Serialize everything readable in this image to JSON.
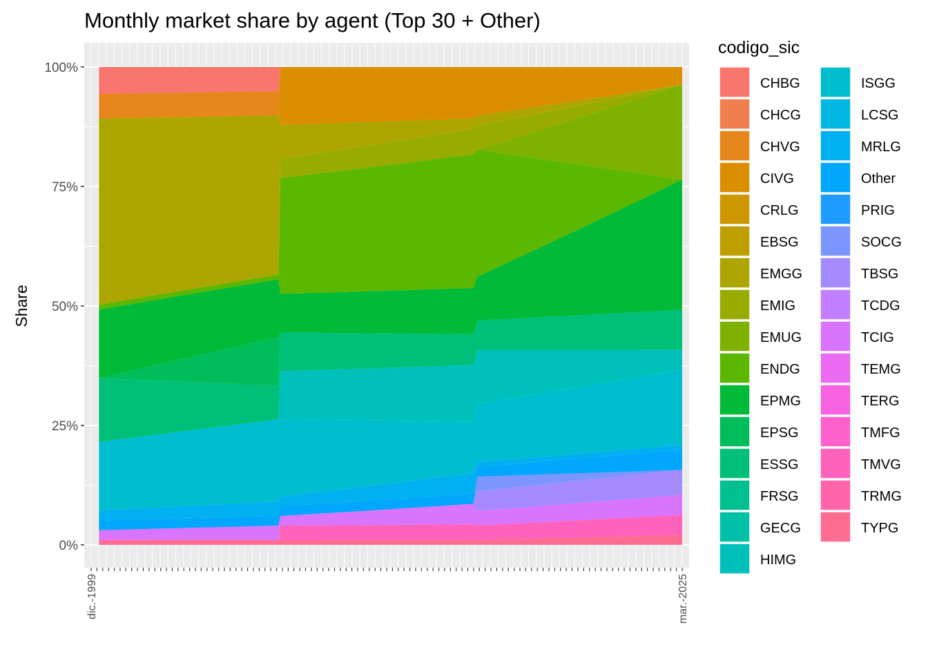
{
  "chart_data": {
    "type": "area",
    "title": "Monthly market share by agent (Top 30 + Other)",
    "xlabel": "",
    "ylabel": "Share",
    "ylim": [
      0,
      1
    ],
    "y_ticks": [
      0,
      0.25,
      0.5,
      0.75,
      1.0
    ],
    "y_tick_labels": [
      "0%",
      "25%",
      "50%",
      "75%",
      "100%"
    ],
    "x_start": "dic.-1999",
    "x_end": "mar.-2025",
    "x_tick_labels_visible": [
      "dic.-1999",
      "mar.-2025"
    ],
    "stacked": true,
    "normalized": true,
    "legend_title": "codigo_sic",
    "legend_position": "right",
    "grid": true,
    "x_anchor_dates": [
      "2000-04",
      "2007-12",
      "2008-01",
      "2016-04",
      "2016-06",
      "2025-03"
    ],
    "series": [
      {
        "name": "CHBG",
        "color": "#F8766D",
        "values": [
          0.055,
          0.05,
          0.0,
          0.0,
          0.0,
          0.0
        ]
      },
      {
        "name": "CHCG",
        "color": "#F17E4F",
        "values": [
          0.0,
          0.0,
          0.0,
          0.0,
          0.0,
          0.0
        ]
      },
      {
        "name": "CHVG",
        "color": "#E7861B",
        "values": [
          0.05,
          0.05,
          0.0,
          0.0,
          0.0,
          0.0
        ]
      },
      {
        "name": "CIVG",
        "color": "#DB8E00",
        "values": [
          0.0,
          0.0,
          0.12,
          0.1,
          0.1,
          0.035
        ]
      },
      {
        "name": "CRLG",
        "color": "#CE9700",
        "values": [
          0.0,
          0.0,
          0.0,
          0.0,
          0.0,
          0.0
        ]
      },
      {
        "name": "EBSG",
        "color": "#BF9E00",
        "values": [
          0.0,
          0.0,
          0.0,
          0.0,
          0.0,
          0.0
        ]
      },
      {
        "name": "EMGG",
        "color": "#ADA600",
        "values": [
          0.38,
          0.33,
          0.07,
          0.02,
          0.02,
          0.0
        ]
      },
      {
        "name": "EMIG",
        "color": "#98AC00",
        "values": [
          0.0,
          0.0,
          0.04,
          0.05,
          0.05,
          0.0
        ]
      },
      {
        "name": "EMUG",
        "color": "#7FB200",
        "values": [
          0.0,
          0.0,
          0.0,
          0.0,
          0.0,
          0.19
        ]
      },
      {
        "name": "ENDG",
        "color": "#5BB700",
        "values": [
          0.01,
          0.01,
          0.24,
          0.26,
          0.26,
          0.0
        ]
      },
      {
        "name": "EPMG",
        "color": "#00BA38",
        "values": [
          0.14,
          0.12,
          0.08,
          0.09,
          0.09,
          0.26
        ]
      },
      {
        "name": "EPSG",
        "color": "#00BD5C",
        "values": [
          0.0,
          0.1,
          0.0,
          0.0,
          0.0,
          0.0
        ]
      },
      {
        "name": "ESSG",
        "color": "#00BF78",
        "values": [
          0.13,
          0.07,
          0.08,
          0.06,
          0.06,
          0.08
        ]
      },
      {
        "name": "FRSG",
        "color": "#00C090",
        "values": [
          0.0,
          0.0,
          0.0,
          0.0,
          0.0,
          0.0
        ]
      },
      {
        "name": "GECG",
        "color": "#00C1A7",
        "values": [
          0.0,
          0.0,
          0.0,
          0.0,
          0.0,
          0.0
        ]
      },
      {
        "name": "HIMG",
        "color": "#00C0BC",
        "values": [
          0.0,
          0.0,
          0.1,
          0.11,
          0.11,
          0.04
        ]
      },
      {
        "name": "ISGG",
        "color": "#00BDD0",
        "values": [
          0.14,
          0.17,
          0.16,
          0.1,
          0.12,
          0.15
        ]
      },
      {
        "name": "LCSG",
        "color": "#00B8E1",
        "values": [
          0.0,
          0.0,
          0.0,
          0.0,
          0.0,
          0.0
        ]
      },
      {
        "name": "MRLG",
        "color": "#00B0F0",
        "values": [
          0.02,
          0.03,
          0.02,
          0.04,
          0.01,
          0.01
        ]
      },
      {
        "name": "Other",
        "color": "#00A7FC",
        "values": [
          0.02,
          0.02,
          0.02,
          0.02,
          0.02,
          0.04
        ]
      },
      {
        "name": "PRIG",
        "color": "#1E9BFF",
        "values": [
          0.0,
          0.0,
          0.0,
          0.0,
          0.0,
          0.0
        ]
      },
      {
        "name": "SOCG",
        "color": "#7D96FF",
        "values": [
          0.0,
          0.0,
          0.0,
          0.0,
          0.03,
          0.0
        ]
      },
      {
        "name": "TBSG",
        "color": "#A58AFF",
        "values": [
          0.0,
          0.0,
          0.0,
          0.0,
          0.04,
          0.05
        ]
      },
      {
        "name": "TCDG",
        "color": "#C27FFF",
        "values": [
          0.0,
          0.0,
          0.0,
          0.0,
          0.0,
          0.0
        ]
      },
      {
        "name": "TCIG",
        "color": "#D974FD",
        "values": [
          0.02,
          0.03,
          0.02,
          0.04,
          0.03,
          0.04
        ]
      },
      {
        "name": "TEMG",
        "color": "#EA6AF1",
        "values": [
          0.0,
          0.0,
          0.0,
          0.0,
          0.0,
          0.0
        ]
      },
      {
        "name": "TERG",
        "color": "#F763E0",
        "values": [
          0.0,
          0.0,
          0.0,
          0.0,
          0.0,
          0.0
        ]
      },
      {
        "name": "TMFG",
        "color": "#FF61CC",
        "values": [
          0.0,
          0.0,
          0.0,
          0.0,
          0.0,
          0.0
        ]
      },
      {
        "name": "TMVG",
        "color": "#FF62BC",
        "values": [
          0.0,
          0.0,
          0.03,
          0.03,
          0.03,
          0.04
        ]
      },
      {
        "name": "TRMG",
        "color": "#FF65AA",
        "values": [
          0.0,
          0.0,
          0.0,
          0.0,
          0.0,
          0.0
        ]
      },
      {
        "name": "TYPG",
        "color": "#FF6C91",
        "values": [
          0.01,
          0.01,
          0.01,
          0.01,
          0.01,
          0.02
        ]
      }
    ]
  }
}
